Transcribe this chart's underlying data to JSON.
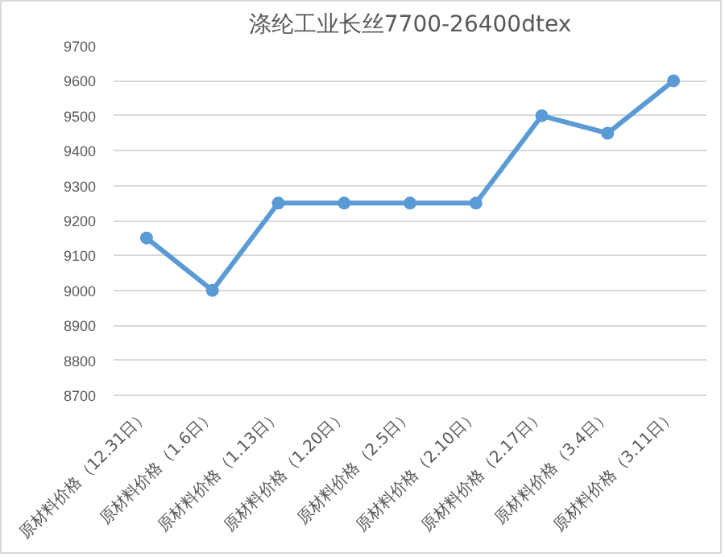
{
  "chart_data": {
    "type": "line",
    "title": "涤纶工业长丝7700-26400dtex",
    "categories": [
      "原材料价格（12.31日）",
      "原材料价格（1.6日）",
      "原材料价格（1.13日）",
      "原材料价格（1.20日）",
      "原材料价格（2.5日）",
      "原材料价格（2.10日）",
      "原材料价格（2.17日）",
      "原材料价格（3.4日）",
      "原材料价格（3.11日）"
    ],
    "series": [
      {
        "color": "#5b9bd5",
        "values": [
          9150,
          9000,
          9250,
          9250,
          9250,
          9250,
          9500,
          9450,
          9600
        ]
      }
    ],
    "ylim": [
      8700,
      9700
    ],
    "yticks": [
      8700,
      8800,
      8900,
      9000,
      9100,
      9200,
      9300,
      9400,
      9500,
      9600,
      9700
    ],
    "grid": "y",
    "marker": "circle",
    "line_style": "solid"
  }
}
